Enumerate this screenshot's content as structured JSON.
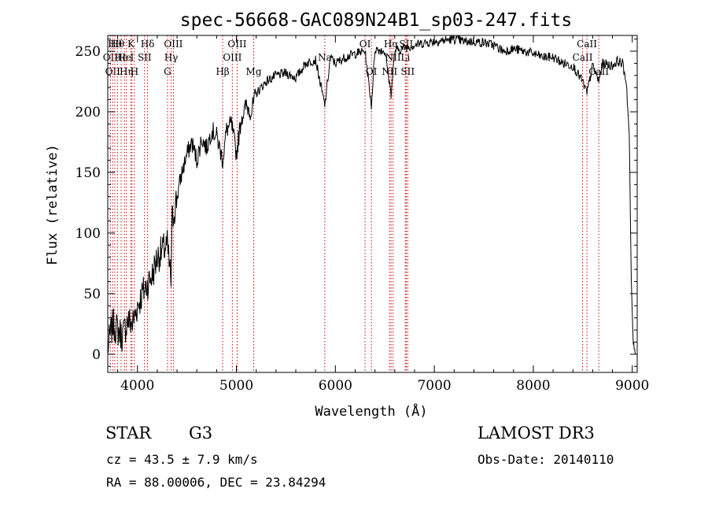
{
  "chart_data": {
    "type": "line",
    "title": "spec-56668-GAC089N24B1_sp03-247.fits",
    "xlabel": "Wavelength (Å)",
    "ylabel": "Flux (relative)",
    "xlim": [
      3700,
      9050
    ],
    "ylim": [
      -15,
      263
    ],
    "x_ticks": [
      4000,
      5000,
      6000,
      7000,
      8000,
      9000
    ],
    "y_ticks": [
      0,
      50,
      100,
      150,
      200,
      250
    ],
    "grid": false,
    "line_color": "#000000",
    "marker_color": "#cc0000",
    "spectrum": {
      "x": [
        3700,
        3750,
        3800,
        3850,
        3900,
        3950,
        4000,
        4050,
        4100,
        4150,
        4200,
        4250,
        4300,
        4340,
        4350,
        4400,
        4450,
        4500,
        4550,
        4600,
        4650,
        4700,
        4750,
        4800,
        4861,
        4900,
        4950,
        5000,
        5050,
        5100,
        5150,
        5200,
        5250,
        5300,
        5400,
        5500,
        5600,
        5700,
        5800,
        5893,
        5950,
        6000,
        6100,
        6200,
        6300,
        6364,
        6400,
        6500,
        6563,
        6600,
        6700,
        6800,
        6900,
        7000,
        7100,
        7200,
        7300,
        7400,
        7500,
        7600,
        7700,
        7800,
        7900,
        8000,
        8100,
        8200,
        8300,
        8400,
        8498,
        8542,
        8600,
        8662,
        8700,
        8800,
        8850,
        8900,
        8940,
        8970,
        8990,
        9010,
        9030
      ],
      "y": [
        5,
        25,
        20,
        15,
        28,
        25,
        40,
        50,
        58,
        65,
        80,
        85,
        90,
        60,
        110,
        130,
        150,
        165,
        175,
        160,
        178,
        170,
        185,
        180,
        160,
        185,
        190,
        165,
        195,
        205,
        200,
        215,
        220,
        225,
        230,
        232,
        228,
        240,
        243,
        205,
        245,
        240,
        245,
        248,
        250,
        205,
        252,
        250,
        215,
        250,
        253,
        255,
        257,
        258,
        259,
        260,
        258,
        258,
        257,
        255,
        250,
        252,
        250,
        248,
        245,
        245,
        240,
        238,
        225,
        215,
        238,
        225,
        240,
        238,
        242,
        240,
        225,
        180,
        60,
        10,
        0
      ]
    },
    "lines": [
      {
        "wl": 3727,
        "row": 1,
        "label": "OII"
      },
      {
        "wl": 3750,
        "row": 2,
        "label": "OII"
      },
      {
        "wl": 3771,
        "row": 0,
        "label": "Hθ"
      },
      {
        "wl": 3798,
        "row": 0,
        "label": "Hθ"
      },
      {
        "wl": 3835,
        "row": 1,
        "label": "He"
      },
      {
        "wl": 3869,
        "row": 1,
        "label": "He"
      },
      {
        "wl": 3889,
        "row": 2,
        "label": "Hη"
      },
      {
        "wl": 3934,
        "row": 0,
        "label": "K"
      },
      {
        "wl": 3945,
        "row": 1,
        "label": "I"
      },
      {
        "wl": 3969,
        "row": 2,
        "label": "H"
      },
      {
        "wl": 4072,
        "row": 1,
        "label": "SII"
      },
      {
        "wl": 4102,
        "row": 0,
        "label": "Hδ"
      },
      {
        "wl": 4304,
        "row": 2,
        "label": "G"
      },
      {
        "wl": 4340,
        "row": 1,
        "label": "Hγ"
      },
      {
        "wl": 4363,
        "row": 0,
        "label": "OIII"
      },
      {
        "wl": 4861,
        "row": 2,
        "label": "Hβ"
      },
      {
        "wl": 4959,
        "row": 1,
        "label": "OIII"
      },
      {
        "wl": 5007,
        "row": 0,
        "label": "OIII"
      },
      {
        "wl": 5175,
        "row": 2,
        "label": "Mg"
      },
      {
        "wl": 5893,
        "row": 1,
        "label": "Na"
      },
      {
        "wl": 6300,
        "row": 0,
        "label": "OI"
      },
      {
        "wl": 6364,
        "row": 2,
        "label": "OI"
      },
      {
        "wl": 6548,
        "row": 2,
        "label": "NII"
      },
      {
        "wl": 6563,
        "row": 0,
        "label": "Hα"
      },
      {
        "wl": 6583,
        "row": 1,
        "label": "NII"
      },
      {
        "wl": 6707,
        "row": 1,
        "label": "Li"
      },
      {
        "wl": 6716,
        "row": 0,
        "label": "SII"
      },
      {
        "wl": 6731,
        "row": 2,
        "label": "SII"
      },
      {
        "wl": 8498,
        "row": 1,
        "label": "CaII"
      },
      {
        "wl": 8542,
        "row": 0,
        "label": "CaII"
      },
      {
        "wl": 8662,
        "row": 2,
        "label": "CaII"
      }
    ]
  },
  "footer": {
    "object_class": "STAR",
    "subclass": "G3",
    "survey": "LAMOST DR3",
    "redshift": "cz = 43.5 ± 7.9 km/s",
    "obs_date": "Obs-Date: 20140110",
    "coordinates": "RA =  88.00006, DEC =  23.84294"
  }
}
